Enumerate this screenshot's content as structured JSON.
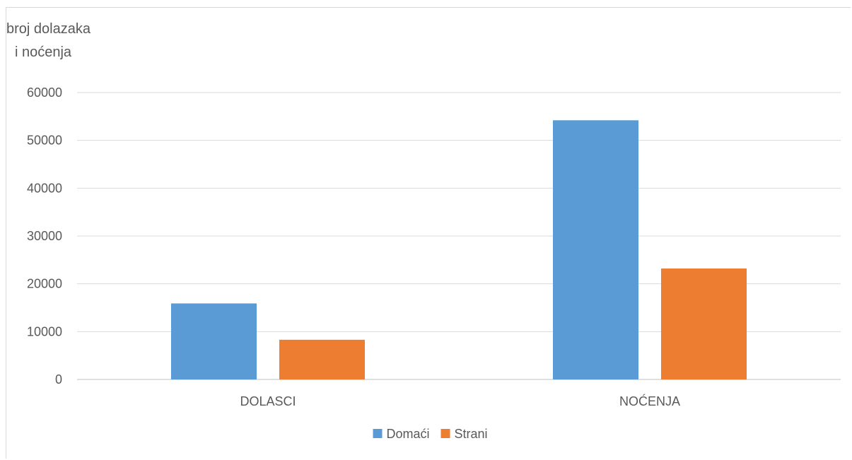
{
  "chart_data": {
    "type": "bar",
    "ylabel_lines": [
      "broj dolazaka",
      "i noćenja"
    ],
    "categories": [
      "DOLASCI",
      "NOĆENJA"
    ],
    "series": [
      {
        "name": "Domaći",
        "color": "#5b9bd5",
        "values": [
          15900,
          54200
        ]
      },
      {
        "name": "Strani",
        "color": "#ed7d31",
        "values": [
          8300,
          23200
        ]
      }
    ],
    "ylim": [
      0,
      60000
    ],
    "yticks": [
      0,
      10000,
      20000,
      30000,
      40000,
      50000,
      60000
    ],
    "grid": true,
    "legend_position": "bottom"
  }
}
